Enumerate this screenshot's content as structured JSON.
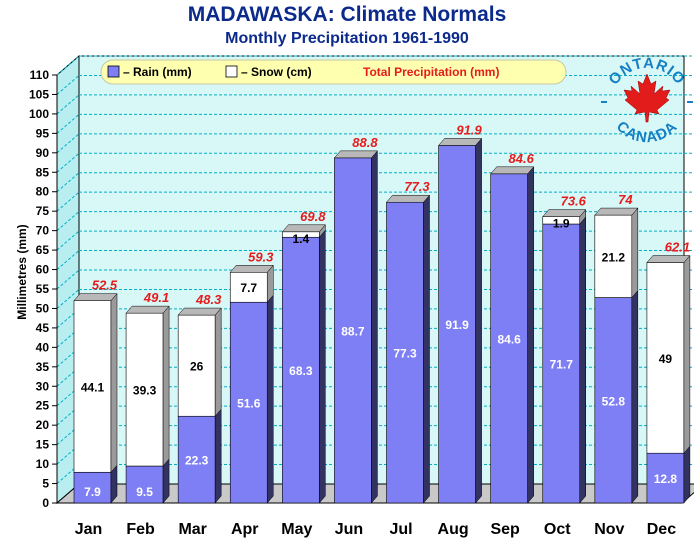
{
  "title": "MADAWASKA: Climate Normals",
  "subtitle": "Monthly Precipitation 1961-1990",
  "badge": {
    "top_text": "ONTARIO",
    "bottom_text": "CANADA",
    "leaf_color": "#e21b1b",
    "text_color": "#1680c4"
  },
  "colors": {
    "rain": "#7f7ff5",
    "snow": "#ffffff",
    "total_label": "#e61b1b",
    "grid": "#00b0c8",
    "wall": "#d8f7f7"
  },
  "chart_data": {
    "type": "bar",
    "stacked": true,
    "categories": [
      "Jan",
      "Feb",
      "Mar",
      "Apr",
      "May",
      "Jun",
      "Jul",
      "Aug",
      "Sep",
      "Oct",
      "Nov",
      "Dec"
    ],
    "series": [
      {
        "name": "– Rain (mm)",
        "values": [
          7.9,
          9.5,
          22.3,
          51.6,
          68.3,
          88.7,
          77.3,
          91.9,
          84.6,
          71.7,
          52.8,
          12.8
        ]
      },
      {
        "name": "– Snow (cm)",
        "values": [
          44.1,
          39.3,
          26,
          7.7,
          1.4,
          null,
          null,
          null,
          null,
          1.9,
          21.2,
          49
        ]
      }
    ],
    "totals_name": "Total Precipitation (mm)",
    "totals": [
      52.5,
      49.1,
      48.3,
      59.3,
      69.8,
      88.8,
      77.3,
      91.9,
      84.6,
      73.6,
      74,
      62.1
    ],
    "ylabel": "Millimetres (mm)",
    "xlabel": "",
    "ylim": [
      0,
      110
    ],
    "ytick_step": 5,
    "grid": true,
    "legend": "top"
  }
}
